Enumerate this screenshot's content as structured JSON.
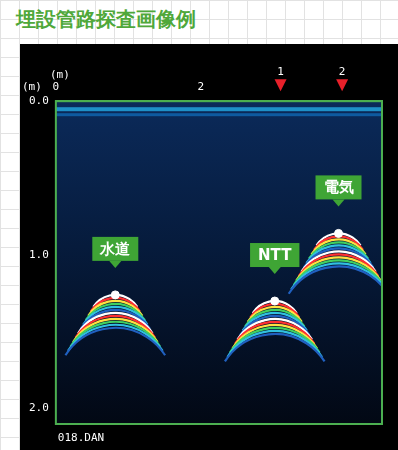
{
  "chart_data": {
    "type": "scatter",
    "title": "埋設管路探査画像例",
    "x_label": "(m)",
    "y_label": "(m)",
    "xlim": [
      0,
      4.5
    ],
    "xticks": [
      0,
      2
    ],
    "ylim": [
      0,
      2.1
    ],
    "yticks": [
      {
        "value": 0,
        "label": "0.0"
      },
      {
        "value": 1,
        "label": "1.0"
      },
      {
        "value": 2,
        "label": "2.0"
      }
    ],
    "x": [
      0.82,
      3.02,
      3.9
    ],
    "values": [
      1.26,
      1.3,
      0.86
    ],
    "point_labels": [
      "水道",
      "NTT",
      "電気"
    ],
    "color": "#ffffff",
    "markers": {
      "x": [
        3.1,
        3.95
      ],
      "labels": [
        "1",
        "2"
      ],
      "color": "#e8202a"
    },
    "footer": "018.DAN",
    "grid": false,
    "legend": false
  }
}
